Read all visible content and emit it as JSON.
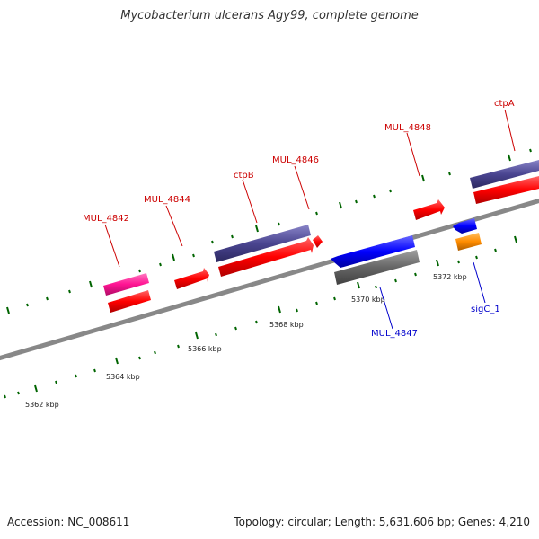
{
  "title": "Mycobacterium ulcerans Agy99, complete genome",
  "footer": {
    "accession": "Accession: NC_008611",
    "summary": "Topology: circular; Length: 5,631,606 bp; Genes: 4,210"
  },
  "scale_labels": [
    "5362 kbp",
    "5364 kbp",
    "5366 kbp",
    "5368 kbp",
    "5370 kbp",
    "5372 kbp"
  ],
  "gene_labels": {
    "mul_4842": "MUL_4842",
    "mul_4844": "MUL_4844",
    "ctpB": "ctpB",
    "mul_4846": "MUL_4846",
    "mul_4848": "MUL_4848",
    "ctpA": "ctpA",
    "mul_4847": "MUL_4847",
    "sigC_1": "sigC_1"
  },
  "colors": {
    "forward_label": "#cc0000",
    "reverse_label": "#0000cc",
    "cds": "#ff0000",
    "gene_purple": "#4a4590",
    "pink": "#ff1493",
    "blue": "#0000ff",
    "orange": "#ff8c00",
    "gray": "#666666",
    "tick": "#006400"
  }
}
